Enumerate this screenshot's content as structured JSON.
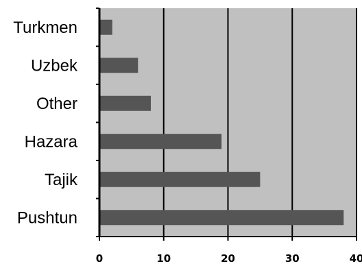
{
  "chart_data": {
    "type": "bar",
    "orientation": "horizontal",
    "categories": [
      "Turkmen",
      "Uzbek",
      "Other",
      "Hazara",
      "Tajik",
      "Pushtun"
    ],
    "values": [
      2,
      6,
      8,
      19,
      25,
      38
    ],
    "title": "",
    "xlabel": "",
    "ylabel": "",
    "xlim": [
      0,
      40
    ],
    "xticks": [
      "0",
      "10",
      "20",
      "30",
      "40"
    ],
    "grid": "vertical",
    "legend": "none",
    "colors": {
      "plot_background": "#c0c0c0",
      "bar": "#555555",
      "grid": "#000000",
      "axis": "#000000"
    }
  }
}
